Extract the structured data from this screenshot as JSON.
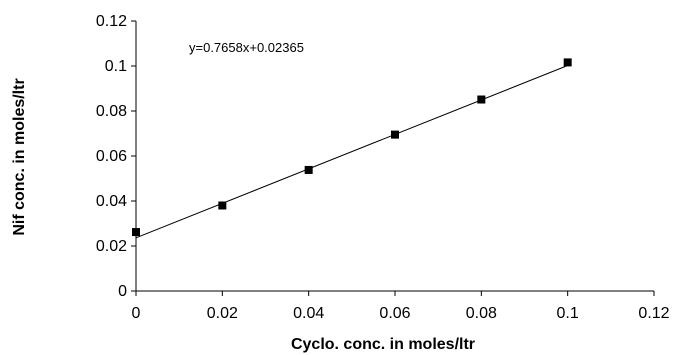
{
  "chart_data": {
    "type": "scatter",
    "title": "",
    "xlabel": "Cyclo. conc. in moles/ltr",
    "ylabel": "Nif conc. in moles/ltr",
    "xlim": [
      0,
      0.12
    ],
    "ylim": [
      0,
      0.12
    ],
    "x_ticks": [
      "0",
      "0.02",
      "0.04",
      "0.06",
      "0.08",
      "0.1",
      "0.12"
    ],
    "y_ticks": [
      "0",
      "0.02",
      "0.04",
      "0.06",
      "0.08",
      "0.1",
      "0.12"
    ],
    "grid": false,
    "legend": "none",
    "series": [
      {
        "marker": "square",
        "color": "#000000",
        "x": [
          0,
          0.02,
          0.04,
          0.06,
          0.08,
          0.1
        ],
        "y": [
          0.0262,
          0.038,
          0.0538,
          0.0695,
          0.0851,
          0.1016
        ]
      }
    ],
    "trendline": {
      "equation_text": "y=0.7658x+0.02365",
      "slope": 0.7658,
      "intercept": 0.02365,
      "x_range": [
        0,
        0.1
      ]
    }
  }
}
